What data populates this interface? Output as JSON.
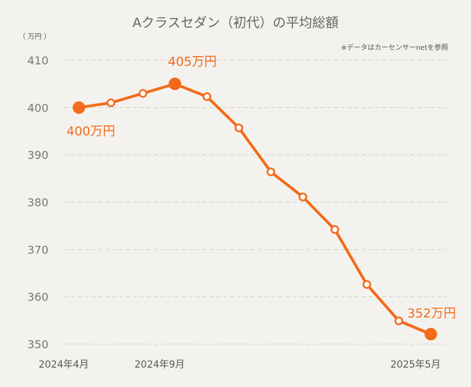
{
  "chart_data": {
    "type": "line",
    "title": "Aクラスセダン（初代）の平均総額",
    "unit_label": "（ 万円 ）",
    "source_note": "※データはカーセンサーnetを参照",
    "ylim": [
      350,
      410
    ],
    "yticks": [
      410,
      400,
      390,
      380,
      370,
      360,
      350
    ],
    "grid": true,
    "x_tick_labels": [
      {
        "index": 0,
        "label": "2024年4月"
      },
      {
        "index": 3,
        "label": "2024年9月"
      },
      {
        "index": 11,
        "label": "2025年5月"
      }
    ],
    "series": [
      {
        "values": [
          400,
          401,
          403,
          405,
          402.3,
          395.7,
          386.4,
          381.1,
          374.2,
          362.6,
          354.9,
          352.1
        ],
        "highlights": [
          0,
          3,
          11
        ],
        "callouts": [
          {
            "index": 0,
            "text": "400万円"
          },
          {
            "index": 3,
            "text": "405万円"
          },
          {
            "index": 11,
            "text": "352万円"
          }
        ]
      }
    ]
  }
}
